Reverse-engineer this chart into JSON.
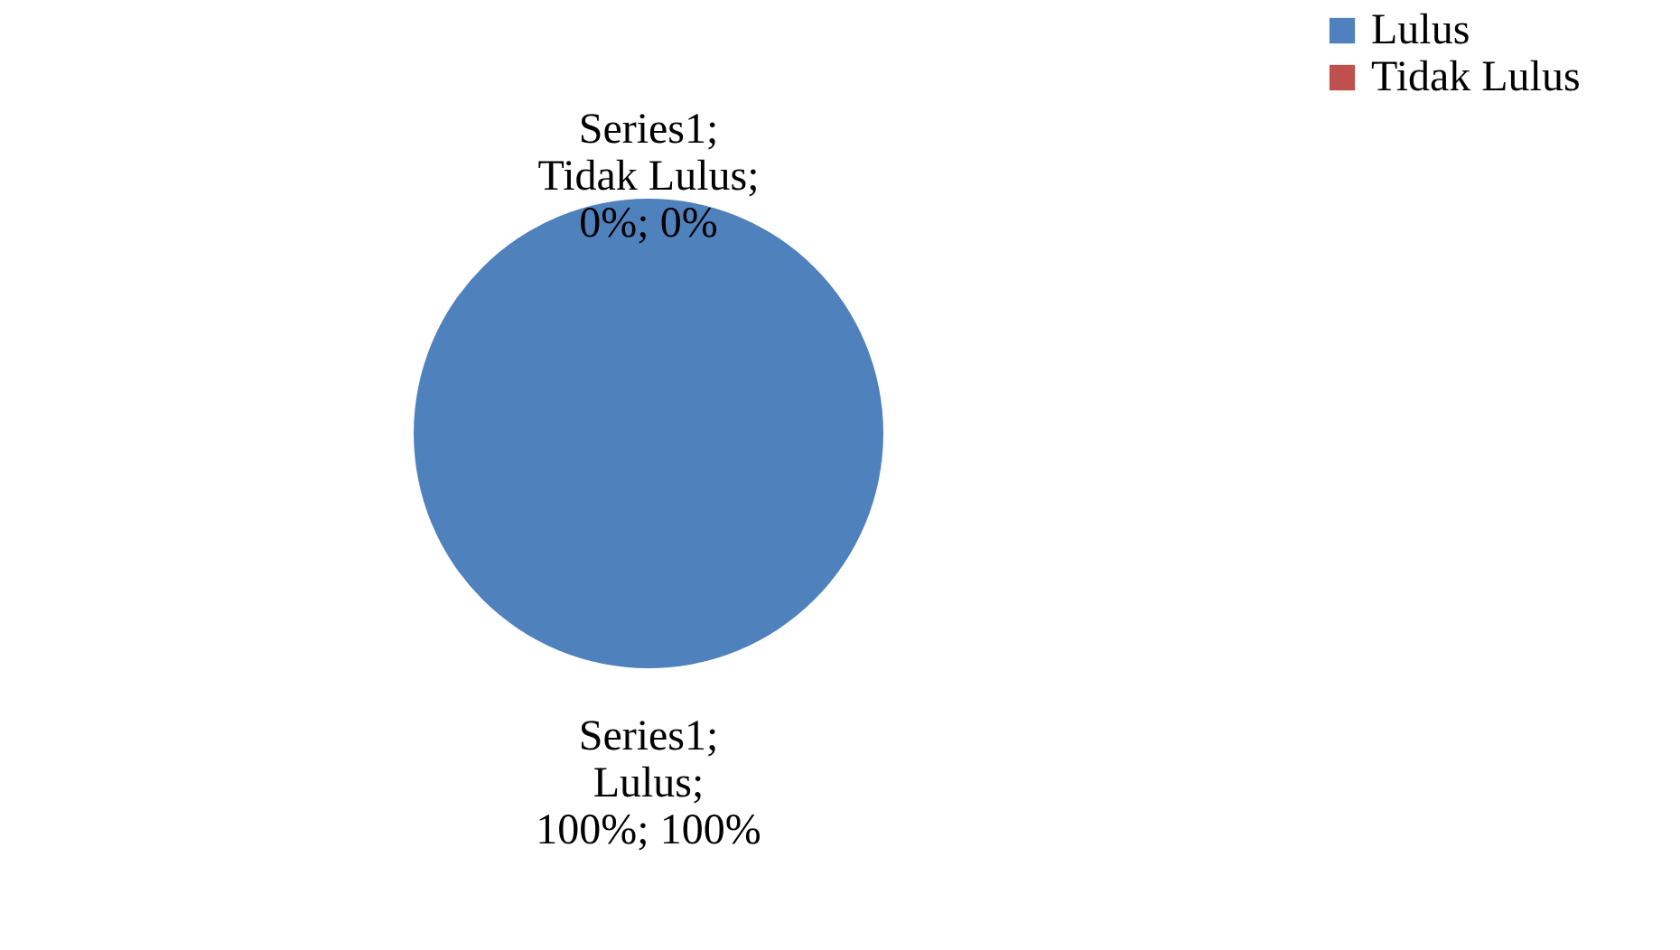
{
  "chart_data": {
    "type": "pie",
    "categories": [
      "Lulus",
      "Tidak Lulus"
    ],
    "values": [
      100,
      0
    ],
    "colors": [
      "#4f81bd",
      "#c0504d"
    ],
    "value_labels": [
      "Series1;\nLulus;\n100%; 100%",
      "Series1;\nTidak Lulus;\n0%; 0%"
    ],
    "legend": "right"
  }
}
